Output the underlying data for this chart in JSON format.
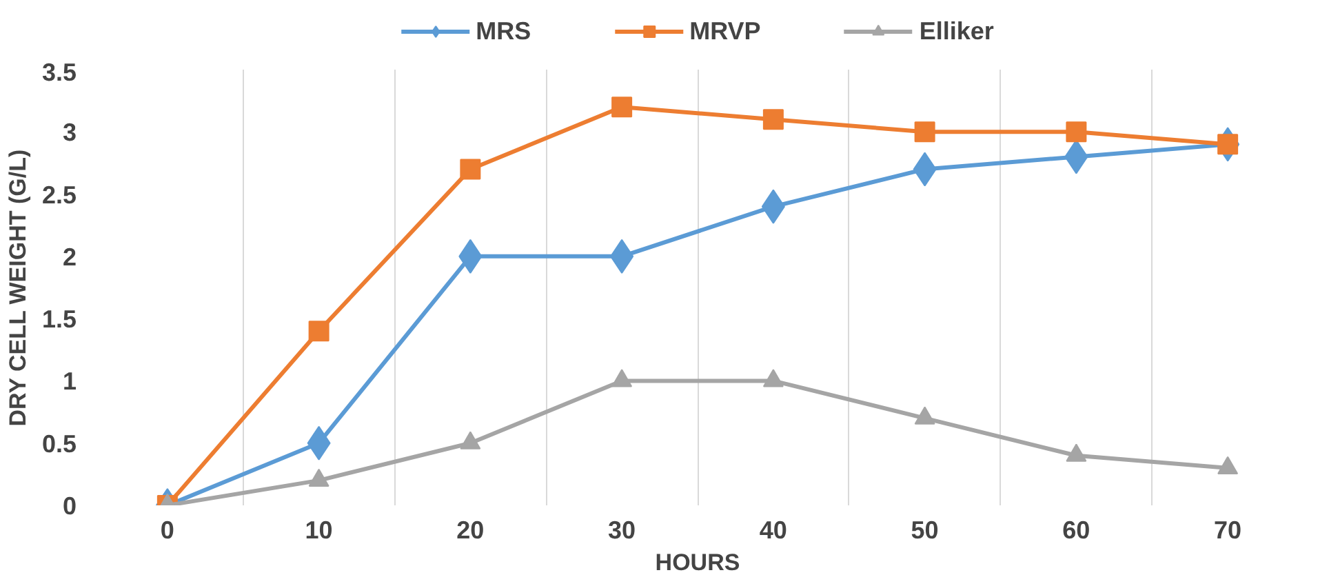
{
  "chart_data": {
    "type": "line",
    "xlabel": "HOURS",
    "ylabel": "DRY CELL WEIGHT (G/L)",
    "categories": [
      "0",
      "10",
      "20",
      "30",
      "40",
      "50",
      "60",
      "70"
    ],
    "series": [
      {
        "name": "MRS",
        "color": "#5b9bd5",
        "marker": "diamond",
        "values": [
          0,
          0.5,
          2,
          2,
          2.4,
          2.7,
          2.8,
          2.9
        ]
      },
      {
        "name": "MRVP",
        "color": "#ed7d31",
        "marker": "square",
        "values": [
          0,
          1.4,
          2.7,
          3.2,
          3.1,
          3,
          3,
          2.9
        ]
      },
      {
        "name": "Elliker",
        "color": "#a5a5a5",
        "marker": "triangle",
        "values": [
          0,
          0.2,
          0.5,
          1,
          1,
          0.7,
          0.4,
          0.3
        ]
      }
    ],
    "ylim": [
      0,
      3.5
    ],
    "yticks": [
      0,
      0.5,
      1,
      1.5,
      2,
      2.5,
      3,
      3.5
    ],
    "grid": "x",
    "legend": "top"
  }
}
